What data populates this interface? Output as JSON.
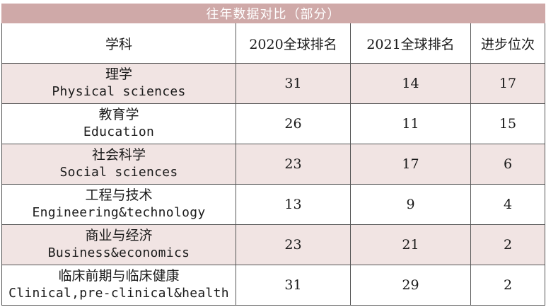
{
  "title": "往年数据对比（部分）",
  "headers": [
    "学科",
    "2020全球排名",
    "2021全球排名",
    "进步位次"
  ],
  "rows": [
    {
      "cn": "理学",
      "en": "Physical sciences",
      "r2020": "31",
      "r2021": "14",
      "up": "17"
    },
    {
      "cn": "教育学",
      "en": "Education",
      "r2020": "26",
      "r2021": "11",
      "up": "15"
    },
    {
      "cn": "社会科学",
      "en": "Social sciences",
      "r2020": "23",
      "r2021": "17",
      "up": "6"
    },
    {
      "cn": "工程与技术",
      "en": "Engineering&technology",
      "r2020": "13",
      "r2021": "9",
      "up": "4"
    },
    {
      "cn": "商业与经济",
      "en": "Business&economics",
      "r2020": "23",
      "r2021": "21",
      "up": "2"
    },
    {
      "cn": "临床前期与临床健康",
      "en": "Clinical,pre-clinical&health",
      "r2020": "31",
      "r2021": "29",
      "up": "2"
    }
  ],
  "colors": {
    "title_bg": "#cfa9a8",
    "shade_row": "#f1e4e3",
    "border": "#555555"
  }
}
